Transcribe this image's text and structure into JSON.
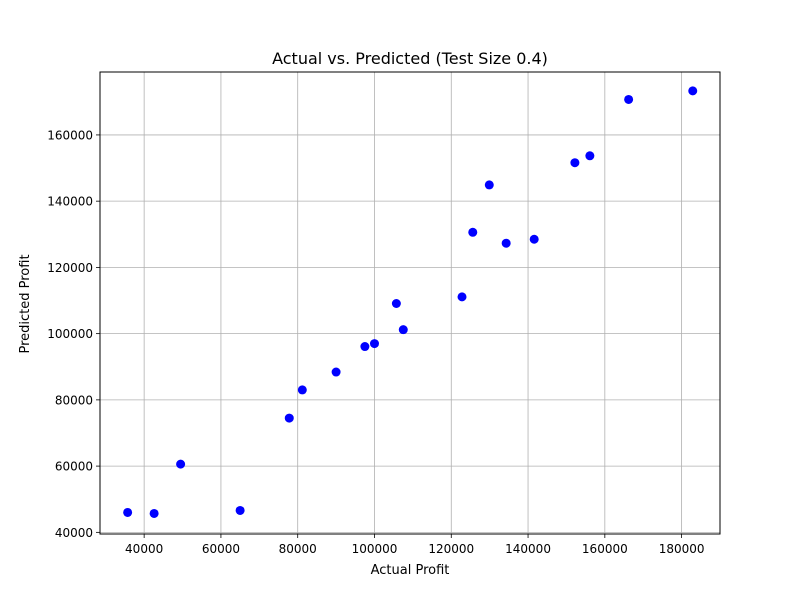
{
  "chart_data": {
    "type": "scatter",
    "title": "Actual vs. Predicted (Test Size 0.4)",
    "xlabel": "Actual Profit",
    "ylabel": "Predicted Profit",
    "xlim": [
      28500,
      190000
    ],
    "ylim": [
      39500,
      179000
    ],
    "xticks": [
      40000,
      60000,
      80000,
      100000,
      120000,
      140000,
      160000,
      180000
    ],
    "yticks": [
      40000,
      60000,
      80000,
      100000,
      120000,
      140000,
      160000
    ],
    "grid": true,
    "marker_color": "#0000ff",
    "series": [
      {
        "x": [
          35700,
          42600,
          49500,
          65000,
          77800,
          81200,
          90000,
          97500,
          100000,
          107500,
          105700,
          122800,
          125600,
          129900,
          134300,
          141600,
          152200,
          156100,
          166200,
          182900
        ],
        "y": [
          46000,
          45700,
          60600,
          46600,
          74500,
          83000,
          88400,
          96100,
          97000,
          101200,
          109100,
          111100,
          130600,
          144900,
          127300,
          128500,
          151600,
          153700,
          170700,
          173300
        ]
      }
    ]
  }
}
